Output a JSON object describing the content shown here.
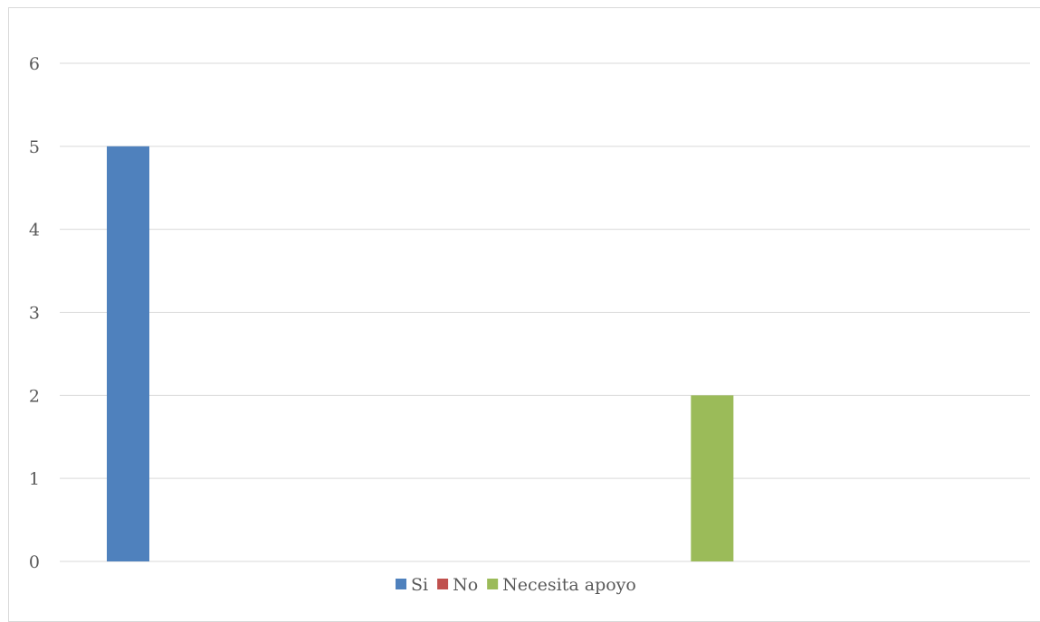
{
  "chart_data": {
    "type": "bar",
    "categories": [
      ""
    ],
    "series": [
      {
        "name": "Si",
        "values": [
          5
        ],
        "color": "#4f81bd"
      },
      {
        "name": "No",
        "values": [
          0
        ],
        "color": "#c0504d"
      },
      {
        "name": "Necesita apoyo",
        "values": [
          2
        ],
        "color": "#9bbb59"
      }
    ],
    "title": "",
    "xlabel": "",
    "ylabel": "",
    "ylim": [
      0,
      6
    ],
    "yticks": [
      "0",
      "1",
      "2",
      "3",
      "4",
      "5",
      "6"
    ],
    "grid": true,
    "legend_position": "bottom"
  }
}
